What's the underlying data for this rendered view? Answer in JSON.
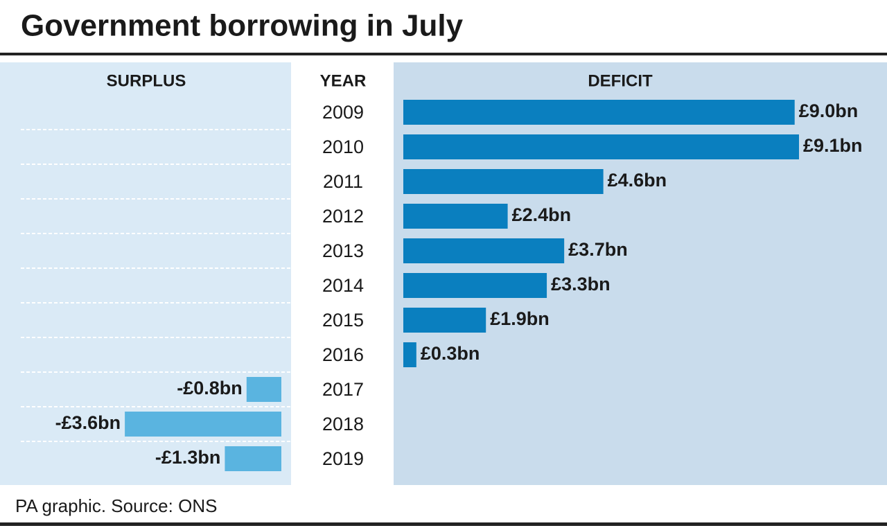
{
  "chart_data": {
    "type": "diverging_bar",
    "title": "Government borrowing in July",
    "surplus_label": "SURPLUS",
    "year_label": "YEAR",
    "deficit_label": "DEFICIT",
    "categories": [
      "2009",
      "2010",
      "2011",
      "2012",
      "2013",
      "2014",
      "2015",
      "2016",
      "2017",
      "2018",
      "2019"
    ],
    "values": [
      9.0,
      9.1,
      4.6,
      2.4,
      3.7,
      3.3,
      1.9,
      0.3,
      -0.8,
      -3.6,
      -1.3
    ],
    "value_labels": [
      "£9.0bn",
      "£9.1bn",
      "£4.6bn",
      "£2.4bn",
      "£3.7bn",
      "£3.3bn",
      "£1.9bn",
      "£0.3bn",
      "-£0.8bn",
      "-£3.6bn",
      "-£1.3bn"
    ],
    "deficit_color": "#0a7fbf",
    "surplus_color": "#5ab4e0",
    "source": "PA graphic. Source: ONS"
  }
}
